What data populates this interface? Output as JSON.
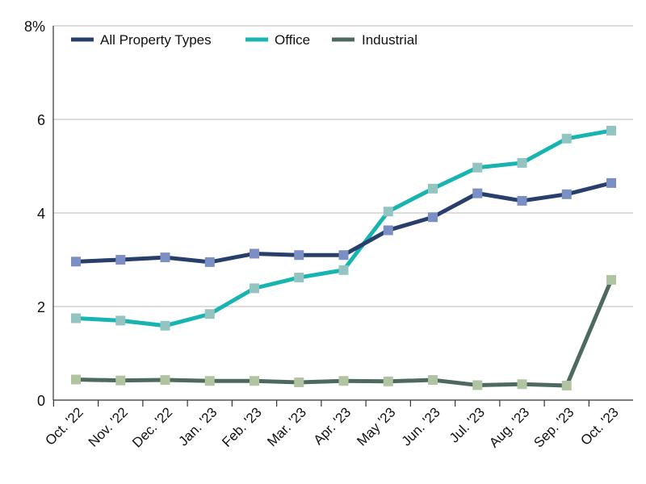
{
  "chart_data": {
    "type": "line",
    "categories": [
      "Oct. '22",
      "Nov. '22",
      "Dec. '22",
      "Jan. '23",
      "Feb. '23",
      "Mar. '23",
      "Apr. '23",
      "May '23",
      "Jun. '23",
      "Jul. '23",
      "Aug. '23",
      "Sep. '23",
      "Oct. '23"
    ],
    "y_ticks": [
      "0",
      "2",
      "4",
      "6",
      "8%"
    ],
    "y_tick_values": [
      0,
      2,
      4,
      6,
      8
    ],
    "ylim": [
      0,
      8
    ],
    "grid": true,
    "legend_position": "top-left",
    "series": [
      {
        "name": "All Property Types",
        "line_color": "#283e6b",
        "marker_color": "#7c8fc4",
        "values": [
          2.96,
          3.0,
          3.05,
          2.95,
          3.13,
          3.1,
          3.1,
          3.63,
          3.91,
          4.42,
          4.26,
          4.4,
          4.64
        ]
      },
      {
        "name": "Office",
        "line_color": "#18b4b0",
        "marker_color": "#93c4c2",
        "values": [
          1.75,
          1.7,
          1.59,
          1.84,
          2.39,
          2.62,
          2.78,
          4.03,
          4.52,
          4.97,
          5.07,
          5.59,
          5.76
        ]
      },
      {
        "name": "Industrial",
        "line_color": "#4e6a5f",
        "marker_color": "#b1c4a2",
        "values": [
          0.44,
          0.42,
          0.43,
          0.41,
          0.41,
          0.38,
          0.41,
          0.4,
          0.43,
          0.32,
          0.34,
          0.31,
          2.57
        ]
      }
    ]
  }
}
